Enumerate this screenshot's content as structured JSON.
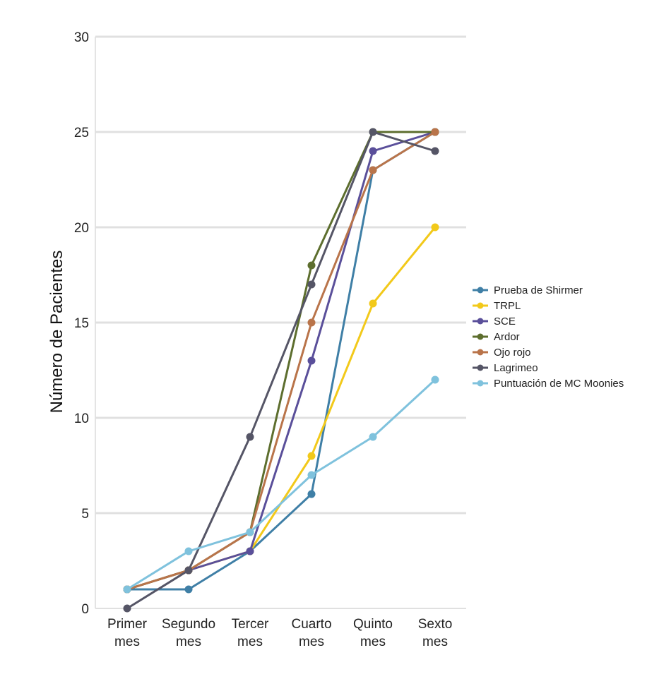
{
  "chart_data": {
    "type": "line",
    "title": "",
    "xlabel": "",
    "ylabel": "Número de Pacientes",
    "categories": [
      [
        "Primer",
        "mes"
      ],
      [
        "Segundo",
        "mes"
      ],
      [
        "Tercer",
        "mes"
      ],
      [
        "Cuarto",
        "mes"
      ],
      [
        "Quinto",
        "mes"
      ],
      [
        "Sexto",
        "mes"
      ]
    ],
    "ylim": [
      0,
      30
    ],
    "yticks": [
      0,
      5,
      10,
      15,
      20,
      25,
      30
    ],
    "grid": true,
    "legend_position": "right",
    "series": [
      {
        "name": "Prueba de Shirmer",
        "color": "#3f7fa6",
        "values": [
          1,
          1,
          3,
          6,
          23,
          25
        ]
      },
      {
        "name": "TRPL",
        "color": "#f2c91a",
        "values": [
          1,
          2,
          3,
          8,
          16,
          20
        ]
      },
      {
        "name": "SCE",
        "color": "#5a4f9a",
        "values": [
          1,
          2,
          3,
          13,
          24,
          25
        ]
      },
      {
        "name": "Ardor",
        "color": "#5d6e2e",
        "values": [
          1,
          2,
          4,
          18,
          25,
          25
        ]
      },
      {
        "name": "Ojo rojo",
        "color": "#b9744a",
        "values": [
          1,
          2,
          4,
          15,
          23,
          25
        ]
      },
      {
        "name": "Lagrimeo",
        "color": "#555566",
        "values": [
          0,
          2,
          9,
          17,
          25,
          24
        ]
      },
      {
        "name": "Puntuación de MC Moonies",
        "color": "#7fc2dd",
        "values": [
          1,
          3,
          4,
          7,
          9,
          12
        ]
      }
    ]
  }
}
